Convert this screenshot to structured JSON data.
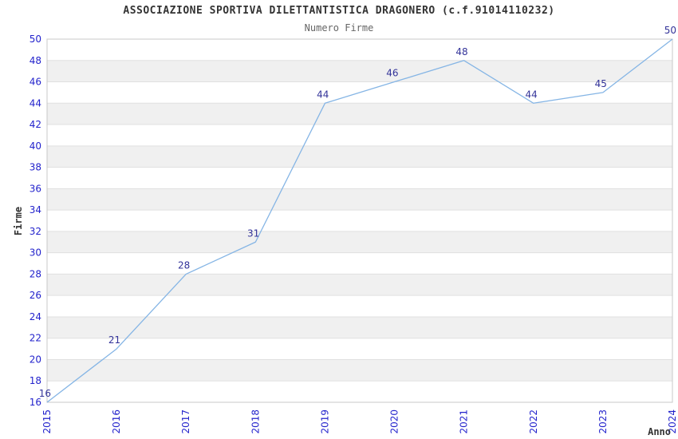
{
  "header": {
    "title": "ASSOCIAZIONE SPORTIVA DILETTANTISTICA DRAGONERO (c.f.91014110232)",
    "subtitle": "Numero Firme"
  },
  "chart_data": {
    "type": "line",
    "title": "ASSOCIAZIONE SPORTIVA DILETTANTISTICA DRAGONERO (c.f.91014110232)",
    "subtitle": "Numero Firme",
    "xlabel": "Anno",
    "ylabel": "Firme",
    "categories": [
      "2015",
      "2016",
      "2017",
      "2018",
      "2019",
      "2020",
      "2021",
      "2022",
      "2023",
      "2024"
    ],
    "values": [
      16,
      21,
      28,
      31,
      44,
      46,
      48,
      44,
      45,
      50
    ],
    "data_labels_shown": true,
    "ylim": [
      16,
      50
    ],
    "ytick_step": 2,
    "grid": "horizontal-bands",
    "legend": "none",
    "colors": {
      "line": "#85b5e5",
      "tick_label": "#2323cc",
      "data_label": "#333399",
      "title": "#333333",
      "subtitle": "#666666",
      "band_fill": "#f0f0f0",
      "grid_line": "#e0e0e0",
      "plot_border": "#c8c8c8",
      "background": "#ffffff",
      "axis_label": "#333333"
    }
  }
}
